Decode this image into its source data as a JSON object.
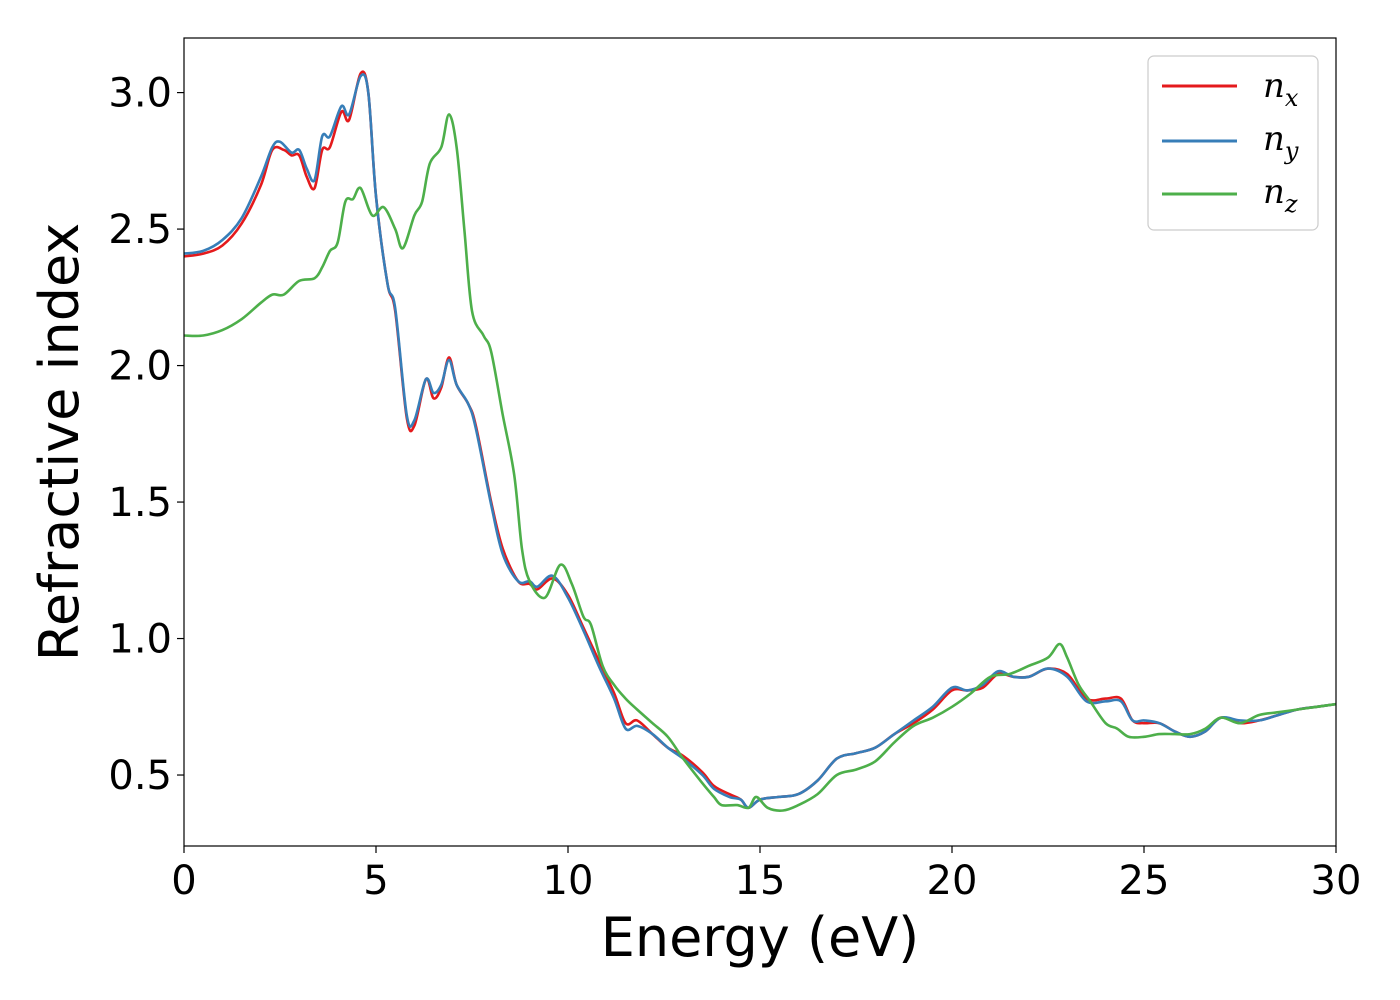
{
  "chart_data": {
    "type": "line",
    "title": "",
    "xlabel": "Energy (eV)",
    "ylabel": "Refractive index",
    "xlim": [
      0,
      30
    ],
    "ylim": [
      0.24,
      3.2
    ],
    "xticks": [
      0,
      5,
      10,
      15,
      20,
      25,
      30
    ],
    "yticks": [
      0.5,
      1.0,
      1.5,
      2.0,
      2.5,
      3.0
    ],
    "xtick_labels": [
      "0",
      "5",
      "10",
      "15",
      "20",
      "25",
      "30"
    ],
    "ytick_labels": [
      "0.5",
      "1.0",
      "1.5",
      "2.0",
      "2.5",
      "3.0"
    ],
    "grid": false,
    "legend_position": "top-right",
    "legend": [
      {
        "base": "n",
        "sub": "x",
        "color": "#e41a1c"
      },
      {
        "base": "n",
        "sub": "y",
        "color": "#377eb8"
      },
      {
        "base": "n",
        "sub": "z",
        "color": "#4daf4a"
      }
    ],
    "series": [
      {
        "name": "nx",
        "color": "#e41a1c",
        "points": [
          [
            0,
            2.4
          ],
          [
            0.5,
            2.41
          ],
          [
            1.0,
            2.44
          ],
          [
            1.5,
            2.52
          ],
          [
            2.0,
            2.66
          ],
          [
            2.3,
            2.79
          ],
          [
            2.6,
            2.79
          ],
          [
            2.8,
            2.77
          ],
          [
            3.0,
            2.77
          ],
          [
            3.2,
            2.69
          ],
          [
            3.4,
            2.65
          ],
          [
            3.6,
            2.79
          ],
          [
            3.8,
            2.8
          ],
          [
            4.1,
            2.93
          ],
          [
            4.3,
            2.9
          ],
          [
            4.6,
            3.07
          ],
          [
            4.8,
            3.0
          ],
          [
            5.0,
            2.62
          ],
          [
            5.3,
            2.3
          ],
          [
            5.5,
            2.2
          ],
          [
            5.8,
            1.81
          ],
          [
            6.0,
            1.78
          ],
          [
            6.3,
            1.95
          ],
          [
            6.5,
            1.88
          ],
          [
            6.7,
            1.92
          ],
          [
            6.9,
            2.03
          ],
          [
            7.1,
            1.93
          ],
          [
            7.4,
            1.86
          ],
          [
            7.6,
            1.78
          ],
          [
            8.0,
            1.5
          ],
          [
            8.3,
            1.33
          ],
          [
            8.7,
            1.21
          ],
          [
            9.0,
            1.2
          ],
          [
            9.2,
            1.18
          ],
          [
            9.6,
            1.22
          ],
          [
            10.0,
            1.16
          ],
          [
            10.4,
            1.04
          ],
          [
            10.8,
            0.92
          ],
          [
            11.2,
            0.8
          ],
          [
            11.5,
            0.69
          ],
          [
            11.8,
            0.7
          ],
          [
            12.2,
            0.65
          ],
          [
            12.6,
            0.6
          ],
          [
            13.0,
            0.57
          ],
          [
            13.5,
            0.51
          ],
          [
            13.8,
            0.46
          ],
          [
            14.2,
            0.43
          ],
          [
            14.5,
            0.41
          ],
          [
            14.7,
            0.38
          ],
          [
            15.0,
            0.41
          ],
          [
            15.5,
            0.42
          ],
          [
            16.0,
            0.43
          ],
          [
            16.5,
            0.48
          ],
          [
            17.0,
            0.56
          ],
          [
            17.5,
            0.58
          ],
          [
            18.0,
            0.6
          ],
          [
            18.5,
            0.65
          ],
          [
            19.0,
            0.69
          ],
          [
            19.5,
            0.74
          ],
          [
            20.0,
            0.81
          ],
          [
            20.4,
            0.81
          ],
          [
            20.8,
            0.82
          ],
          [
            21.2,
            0.87
          ],
          [
            21.6,
            0.86
          ],
          [
            22.0,
            0.86
          ],
          [
            22.5,
            0.89
          ],
          [
            23.0,
            0.87
          ],
          [
            23.5,
            0.78
          ],
          [
            24.0,
            0.78
          ],
          [
            24.4,
            0.78
          ],
          [
            24.7,
            0.7
          ],
          [
            25.0,
            0.69
          ],
          [
            25.4,
            0.69
          ],
          [
            25.8,
            0.66
          ],
          [
            26.2,
            0.64
          ],
          [
            26.6,
            0.66
          ],
          [
            27.0,
            0.71
          ],
          [
            27.5,
            0.69
          ],
          [
            28.0,
            0.7
          ],
          [
            28.5,
            0.72
          ],
          [
            29.0,
            0.74
          ],
          [
            29.5,
            0.75
          ],
          [
            30.0,
            0.76
          ]
        ]
      },
      {
        "name": "ny",
        "color": "#377eb8",
        "points": [
          [
            0,
            2.41
          ],
          [
            0.5,
            2.42
          ],
          [
            1.0,
            2.46
          ],
          [
            1.5,
            2.54
          ],
          [
            2.0,
            2.69
          ],
          [
            2.3,
            2.8
          ],
          [
            2.5,
            2.82
          ],
          [
            2.8,
            2.78
          ],
          [
            3.0,
            2.79
          ],
          [
            3.2,
            2.72
          ],
          [
            3.4,
            2.68
          ],
          [
            3.6,
            2.84
          ],
          [
            3.8,
            2.84
          ],
          [
            4.1,
            2.95
          ],
          [
            4.3,
            2.92
          ],
          [
            4.6,
            3.06
          ],
          [
            4.8,
            3.0
          ],
          [
            5.0,
            2.62
          ],
          [
            5.3,
            2.3
          ],
          [
            5.5,
            2.21
          ],
          [
            5.8,
            1.82
          ],
          [
            6.0,
            1.8
          ],
          [
            6.3,
            1.95
          ],
          [
            6.5,
            1.9
          ],
          [
            6.7,
            1.93
          ],
          [
            6.9,
            2.02
          ],
          [
            7.1,
            1.93
          ],
          [
            7.4,
            1.86
          ],
          [
            7.6,
            1.77
          ],
          [
            8.0,
            1.49
          ],
          [
            8.3,
            1.31
          ],
          [
            8.7,
            1.21
          ],
          [
            9.0,
            1.21
          ],
          [
            9.2,
            1.19
          ],
          [
            9.6,
            1.23
          ],
          [
            10.0,
            1.15
          ],
          [
            10.4,
            1.03
          ],
          [
            10.8,
            0.9
          ],
          [
            11.2,
            0.78
          ],
          [
            11.5,
            0.67
          ],
          [
            11.8,
            0.68
          ],
          [
            12.2,
            0.65
          ],
          [
            12.6,
            0.6
          ],
          [
            13.0,
            0.56
          ],
          [
            13.5,
            0.5
          ],
          [
            13.8,
            0.45
          ],
          [
            14.2,
            0.42
          ],
          [
            14.5,
            0.41
          ],
          [
            14.7,
            0.38
          ],
          [
            15.0,
            0.41
          ],
          [
            15.5,
            0.42
          ],
          [
            16.0,
            0.43
          ],
          [
            16.5,
            0.48
          ],
          [
            17.0,
            0.56
          ],
          [
            17.5,
            0.58
          ],
          [
            18.0,
            0.6
          ],
          [
            18.5,
            0.65
          ],
          [
            19.0,
            0.7
          ],
          [
            19.5,
            0.75
          ],
          [
            20.0,
            0.82
          ],
          [
            20.4,
            0.81
          ],
          [
            20.8,
            0.83
          ],
          [
            21.2,
            0.88
          ],
          [
            21.6,
            0.86
          ],
          [
            22.0,
            0.86
          ],
          [
            22.5,
            0.89
          ],
          [
            23.0,
            0.86
          ],
          [
            23.5,
            0.77
          ],
          [
            24.0,
            0.77
          ],
          [
            24.4,
            0.77
          ],
          [
            24.7,
            0.7
          ],
          [
            25.0,
            0.7
          ],
          [
            25.4,
            0.69
          ],
          [
            25.8,
            0.66
          ],
          [
            26.2,
            0.64
          ],
          [
            26.6,
            0.66
          ],
          [
            27.0,
            0.71
          ],
          [
            27.5,
            0.7
          ],
          [
            28.0,
            0.7
          ],
          [
            28.5,
            0.72
          ],
          [
            29.0,
            0.74
          ],
          [
            29.5,
            0.75
          ],
          [
            30.0,
            0.76
          ]
        ]
      },
      {
        "name": "nz",
        "color": "#4daf4a",
        "points": [
          [
            0,
            2.11
          ],
          [
            0.5,
            2.11
          ],
          [
            1.0,
            2.13
          ],
          [
            1.5,
            2.17
          ],
          [
            2.0,
            2.23
          ],
          [
            2.3,
            2.26
          ],
          [
            2.6,
            2.26
          ],
          [
            3.0,
            2.31
          ],
          [
            3.4,
            2.32
          ],
          [
            3.6,
            2.36
          ],
          [
            3.8,
            2.42
          ],
          [
            4.0,
            2.45
          ],
          [
            4.2,
            2.6
          ],
          [
            4.4,
            2.61
          ],
          [
            4.6,
            2.65
          ],
          [
            4.9,
            2.55
          ],
          [
            5.2,
            2.58
          ],
          [
            5.5,
            2.5
          ],
          [
            5.7,
            2.43
          ],
          [
            6.0,
            2.55
          ],
          [
            6.2,
            2.6
          ],
          [
            6.4,
            2.74
          ],
          [
            6.7,
            2.8
          ],
          [
            6.9,
            2.92
          ],
          [
            7.1,
            2.8
          ],
          [
            7.3,
            2.5
          ],
          [
            7.5,
            2.2
          ],
          [
            7.8,
            2.11
          ],
          [
            8.0,
            2.05
          ],
          [
            8.3,
            1.82
          ],
          [
            8.6,
            1.6
          ],
          [
            8.8,
            1.33
          ],
          [
            9.0,
            1.21
          ],
          [
            9.4,
            1.15
          ],
          [
            9.8,
            1.27
          ],
          [
            10.1,
            1.2
          ],
          [
            10.4,
            1.08
          ],
          [
            10.6,
            1.05
          ],
          [
            10.9,
            0.9
          ],
          [
            11.2,
            0.83
          ],
          [
            11.5,
            0.78
          ],
          [
            11.8,
            0.74
          ],
          [
            12.2,
            0.69
          ],
          [
            12.6,
            0.64
          ],
          [
            13.0,
            0.56
          ],
          [
            13.5,
            0.47
          ],
          [
            13.8,
            0.42
          ],
          [
            14.0,
            0.39
          ],
          [
            14.4,
            0.39
          ],
          [
            14.7,
            0.38
          ],
          [
            14.9,
            0.42
          ],
          [
            15.2,
            0.38
          ],
          [
            15.6,
            0.37
          ],
          [
            16.0,
            0.39
          ],
          [
            16.5,
            0.43
          ],
          [
            17.0,
            0.5
          ],
          [
            17.5,
            0.52
          ],
          [
            18.0,
            0.55
          ],
          [
            18.5,
            0.62
          ],
          [
            19.0,
            0.68
          ],
          [
            19.5,
            0.71
          ],
          [
            20.0,
            0.75
          ],
          [
            20.5,
            0.8
          ],
          [
            21.0,
            0.86
          ],
          [
            21.5,
            0.87
          ],
          [
            22.0,
            0.9
          ],
          [
            22.5,
            0.93
          ],
          [
            22.8,
            0.98
          ],
          [
            23.0,
            0.93
          ],
          [
            23.3,
            0.83
          ],
          [
            23.6,
            0.77
          ],
          [
            24.0,
            0.69
          ],
          [
            24.3,
            0.67
          ],
          [
            24.6,
            0.64
          ],
          [
            25.0,
            0.64
          ],
          [
            25.4,
            0.65
          ],
          [
            25.8,
            0.65
          ],
          [
            26.2,
            0.65
          ],
          [
            26.6,
            0.67
          ],
          [
            27.0,
            0.71
          ],
          [
            27.5,
            0.69
          ],
          [
            28.0,
            0.72
          ],
          [
            28.5,
            0.73
          ],
          [
            29.0,
            0.74
          ],
          [
            29.5,
            0.75
          ],
          [
            30.0,
            0.76
          ]
        ]
      }
    ]
  }
}
